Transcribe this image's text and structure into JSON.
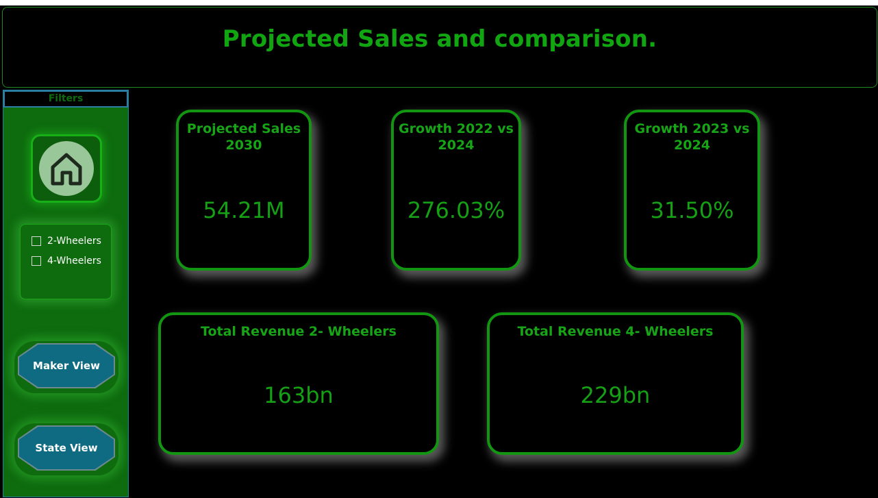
{
  "header": {
    "title": "Projected Sales and comparison."
  },
  "sidebar": {
    "filters_label": "Filters",
    "slicer": {
      "options": [
        {
          "label": "2-Wheelers",
          "checked": false
        },
        {
          "label": "4-Wheelers",
          "checked": false
        }
      ]
    },
    "nav": {
      "maker_view": "Maker View",
      "state_view": "State View"
    }
  },
  "cards": {
    "projected_sales": {
      "label": "Projected Sales 2030",
      "value": "54.21M"
    },
    "growth_2022": {
      "label": "Growth 2022 vs 2024",
      "value": "276.03%"
    },
    "growth_2023": {
      "label": "Growth 2023 vs 2024",
      "value": "31.50%"
    },
    "revenue_2w": {
      "label": "Total Revenue 2- Wheelers",
      "value": "163bn"
    },
    "revenue_4w": {
      "label": "Total Revenue 4- Wheelers",
      "value": "229bn"
    }
  },
  "colors": {
    "accent_green": "#12a512",
    "sidebar_green": "#0e6b0e",
    "nav_teal": "#0e6b82",
    "background": "#000000"
  },
  "icons": {
    "home": "home-icon"
  }
}
